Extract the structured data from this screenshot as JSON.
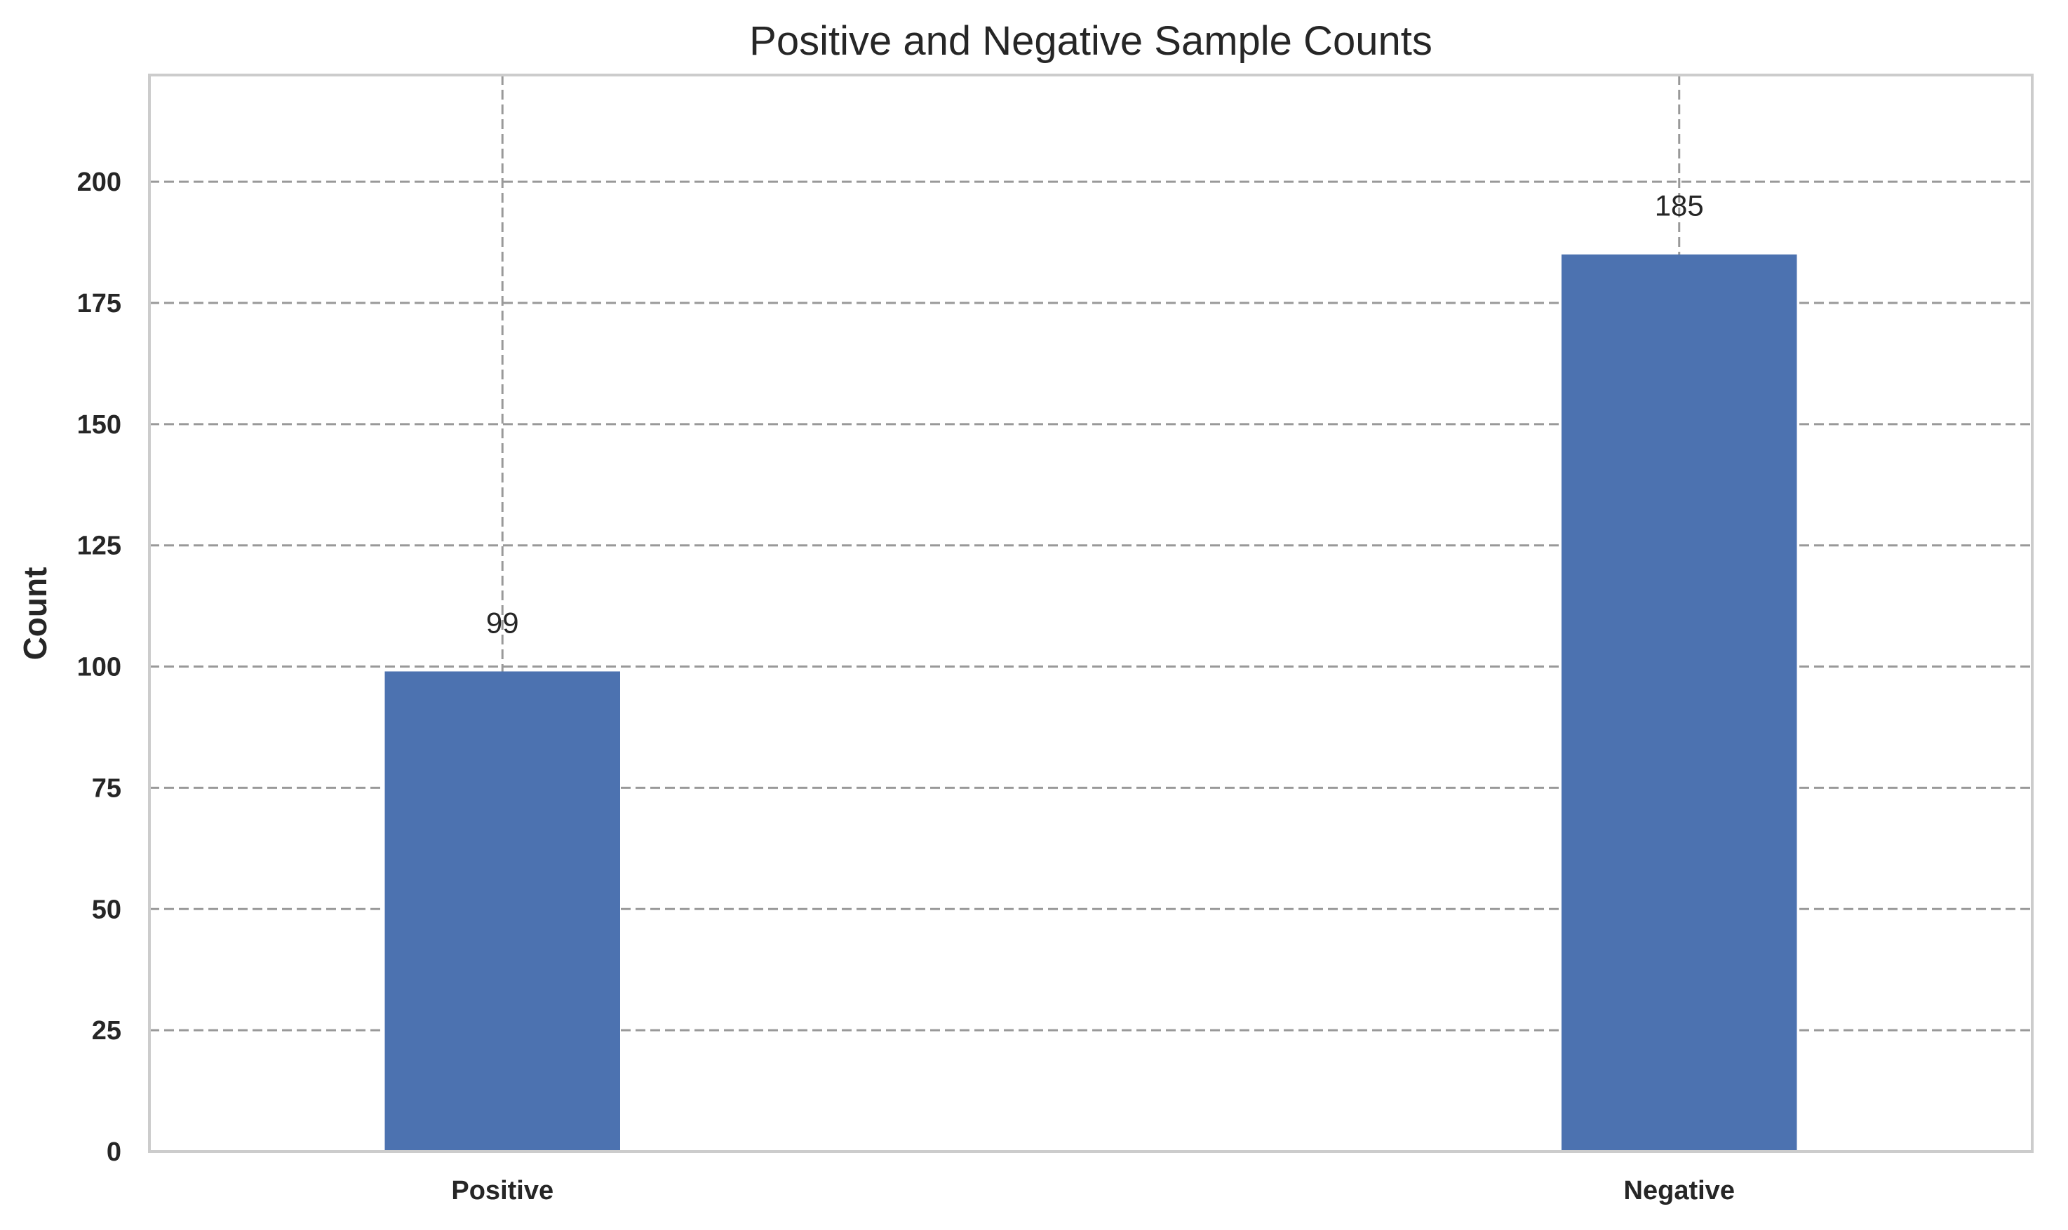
{
  "chart_data": {
    "type": "bar",
    "title": "Positive and Negative Sample Counts",
    "xlabel": "",
    "ylabel": "Count",
    "categories": [
      "Positive",
      "Negative"
    ],
    "values": [
      99,
      185
    ],
    "value_labels": [
      "99",
      "185"
    ],
    "ylim": [
      0,
      222
    ],
    "yticks": [
      0,
      25,
      50,
      75,
      100,
      125,
      150,
      175,
      200
    ],
    "grid": true,
    "bar_color": "#4c72b0"
  }
}
